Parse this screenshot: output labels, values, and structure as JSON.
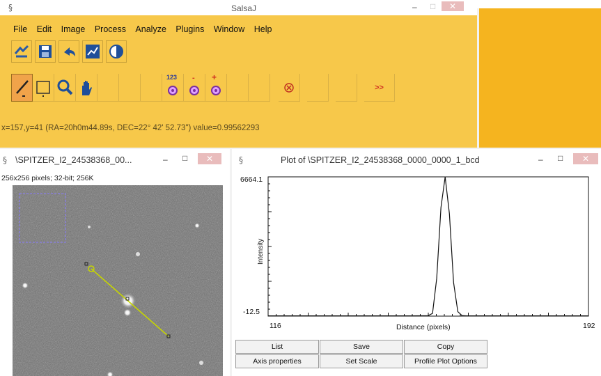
{
  "main": {
    "title": "SalsaJ",
    "menu": [
      "File",
      "Edit",
      "Image",
      "Process",
      "Analyze",
      "Plugins",
      "Window",
      "Help"
    ],
    "toolbar_row1": [
      {
        "icon": "open-refresh-icon"
      },
      {
        "icon": "save-disk-icon"
      },
      {
        "icon": "undo-arrow-icon"
      },
      {
        "icon": "graph-icon"
      },
      {
        "icon": "contrast-circle-icon"
      }
    ],
    "toolbar_row2": [
      {
        "icon": "line-tool-icon",
        "active": true
      },
      {
        "icon": "rectangle-tool-icon"
      },
      {
        "icon": "magnifier-icon"
      },
      {
        "icon": "hand-icon"
      },
      {
        "icon": "empty"
      },
      {
        "icon": "photometry-123-icon",
        "text": "123"
      },
      {
        "icon": "photometry-minus-icon",
        "text": "-"
      },
      {
        "icon": "photometry-plus-icon",
        "text": "+"
      },
      {
        "icon": "empty"
      },
      {
        "icon": "cancel-x-icon"
      },
      {
        "icon": "empty"
      },
      {
        "icon": "empty"
      },
      {
        "icon": "more-chevrons-icon",
        "text": ">>"
      }
    ],
    "status": "x=157,y=41 (RA=20h0m44.89s,  DEC=22° 42' 52.73\") value=0.99562293",
    "colors": {
      "toolbar": "#f7c84a",
      "panel": "#f5b41f",
      "active_tool": "#f0a34a"
    }
  },
  "image_window": {
    "title": "\\SPITZER_I2_24538368_00...",
    "info": "256x256 pixels; 32-bit; 256K"
  },
  "plot_window": {
    "title": "Plot of \\SPITZER_I2_24538368_0000_0000_1_bcd",
    "buttons_row1": [
      "List",
      "Save",
      "Copy"
    ],
    "buttons_row2": [
      "Axis properties",
      "Set Scale",
      "Profile Plot Options"
    ]
  },
  "chart_data": {
    "type": "line",
    "title": "",
    "xlabel": "Distance (pixels)",
    "ylabel": "Intensity",
    "xlim": [
      116,
      192
    ],
    "ylim": [
      -12.5,
      6664.1
    ],
    "xtick_labels": [
      "116",
      "192"
    ],
    "ytick_labels": [
      "6664.1",
      "-12.5"
    ],
    "series": [
      {
        "x": [
          116,
          140,
          150,
          154,
          155,
          156,
          157,
          158,
          159,
          160,
          161,
          162,
          163,
          170,
          192
        ],
        "y": [
          0,
          0,
          0,
          10,
          120,
          1800,
          5200,
          6664.1,
          4900,
          1600,
          200,
          15,
          0,
          0,
          0
        ]
      }
    ]
  }
}
